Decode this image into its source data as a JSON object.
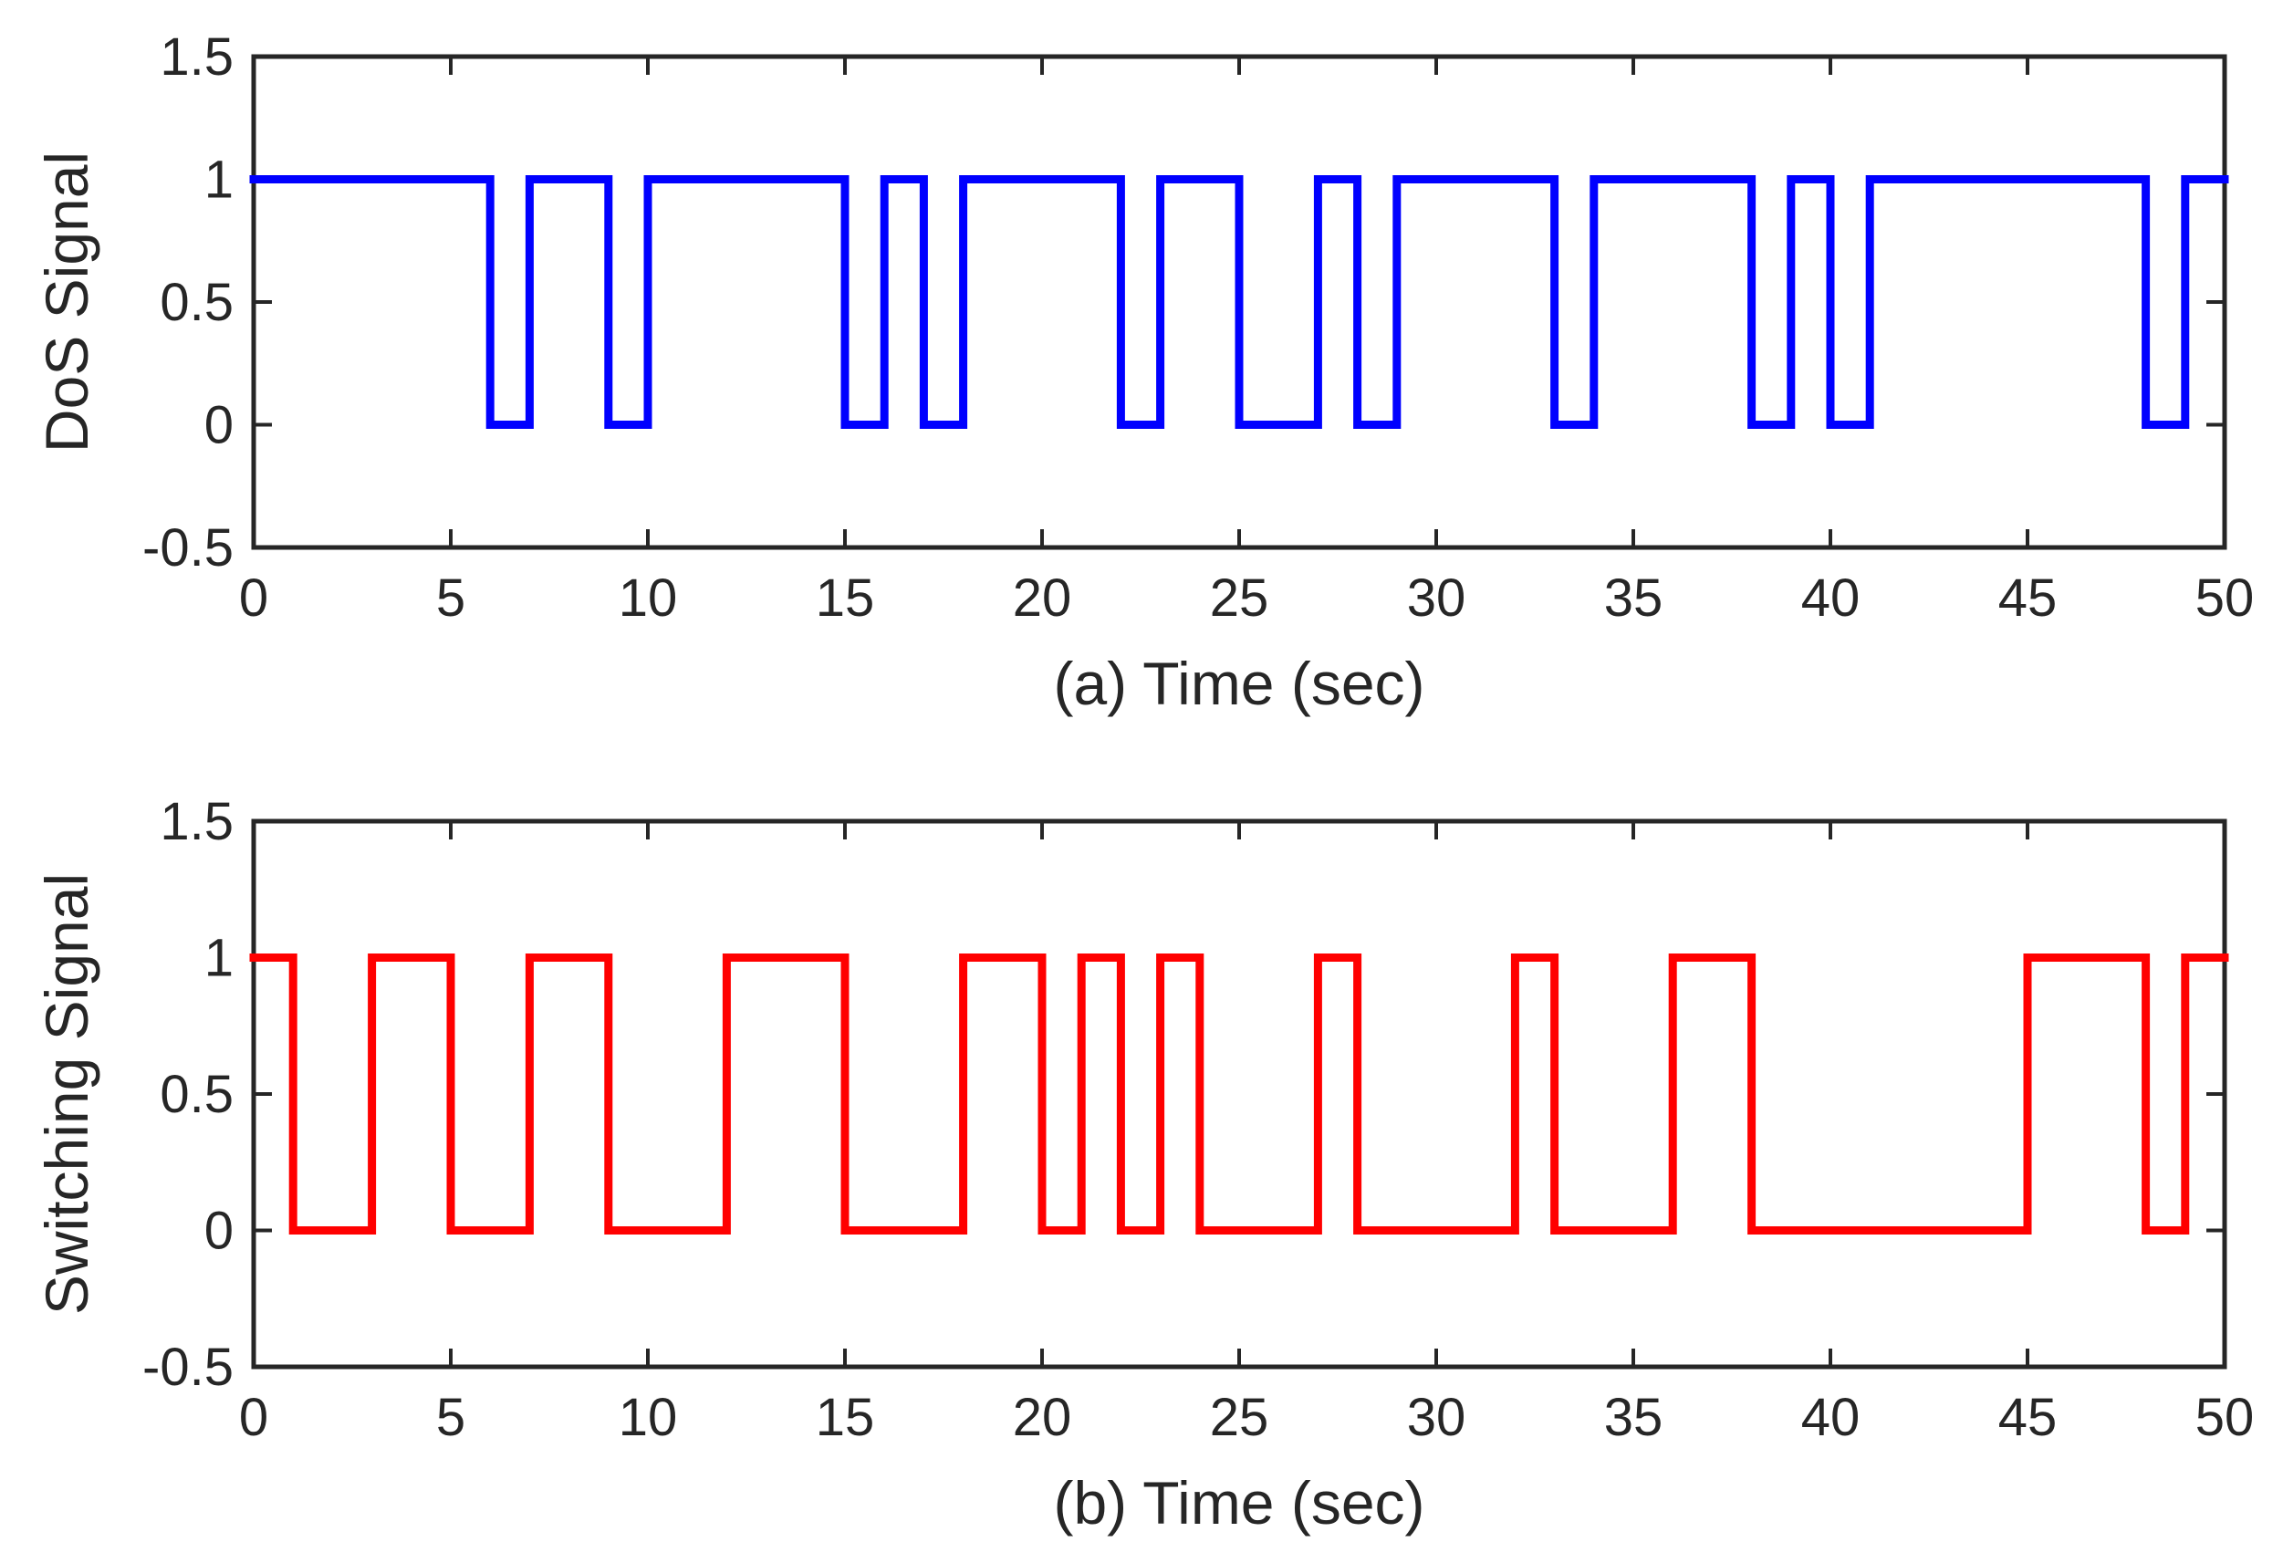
{
  "chart_data": [
    {
      "type": "line",
      "panel": "a",
      "title": "",
      "xlabel": "(a) Time (sec)",
      "ylabel": "DoS Signal",
      "xlim": [
        0,
        50
      ],
      "ylim": [
        -0.5,
        1.5
      ],
      "xticks": [
        0,
        5,
        10,
        15,
        20,
        25,
        30,
        35,
        40,
        45,
        50
      ],
      "xtick_labels": [
        "0",
        "5",
        "10",
        "15",
        "20",
        "25",
        "30",
        "35",
        "40",
        "45",
        "50"
      ],
      "yticks": [
        -0.5,
        0,
        0.5,
        1,
        1.5
      ],
      "ytick_labels": [
        "-0.5",
        "0",
        "0.5",
        "1",
        "1.5"
      ],
      "grid": false,
      "series": [
        {
          "name": "DoS Signal",
          "color": "#0000ff",
          "step": true,
          "x": [
            0,
            6,
            7,
            9,
            10,
            15,
            16,
            17,
            18,
            22,
            23,
            25,
            27,
            28,
            29,
            33,
            34,
            38,
            39,
            40,
            41,
            48,
            49,
            50
          ],
          "y": [
            1,
            0,
            1,
            0,
            1,
            0,
            1,
            0,
            1,
            0,
            1,
            0,
            1,
            0,
            1,
            0,
            1,
            0,
            1,
            0,
            1,
            0,
            1,
            1
          ]
        }
      ]
    },
    {
      "type": "line",
      "panel": "b",
      "title": "",
      "xlabel": "(b) Time (sec)",
      "ylabel": "Switching Signal",
      "xlim": [
        0,
        50
      ],
      "ylim": [
        -0.5,
        1.5
      ],
      "xticks": [
        0,
        5,
        10,
        15,
        20,
        25,
        30,
        35,
        40,
        45,
        50
      ],
      "xtick_labels": [
        "0",
        "5",
        "10",
        "15",
        "20",
        "25",
        "30",
        "35",
        "40",
        "45",
        "50"
      ],
      "yticks": [
        -0.5,
        0,
        0.5,
        1,
        1.5
      ],
      "ytick_labels": [
        "-0.5",
        "0",
        "0.5",
        "1",
        "1.5"
      ],
      "grid": false,
      "series": [
        {
          "name": "Switching Signal",
          "color": "#ff0000",
          "step": true,
          "x": [
            0,
            1,
            3,
            5,
            7,
            9,
            12,
            15,
            18,
            20,
            21,
            22,
            23,
            24,
            27,
            28,
            32,
            33,
            36,
            38,
            45,
            48,
            49,
            50
          ],
          "y": [
            1,
            0,
            1,
            0,
            1,
            0,
            1,
            0,
            1,
            0,
            1,
            0,
            1,
            0,
            1,
            0,
            1,
            0,
            1,
            0,
            1,
            0,
            1,
            1
          ]
        }
      ]
    }
  ]
}
